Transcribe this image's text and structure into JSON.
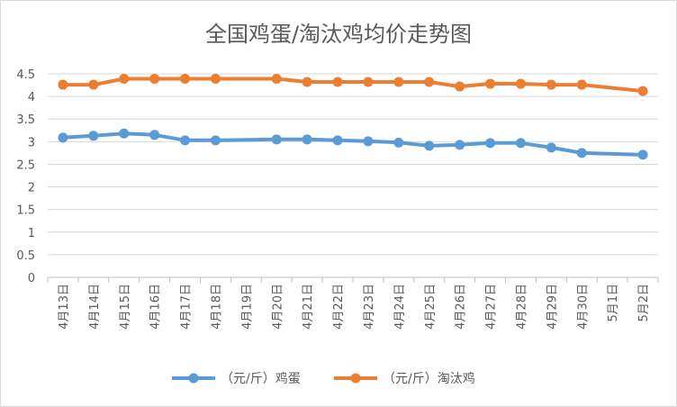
{
  "chart_data": {
    "type": "line",
    "title": "全国鸡蛋/淘汰鸡均价走势图",
    "xlabel": "",
    "ylabel": "",
    "categories": [
      "4月13日",
      "4月14日",
      "4月15日",
      "4月16日",
      "4月17日",
      "4月18日",
      "4月19日",
      "4月20日",
      "4月21日",
      "4月22日",
      "4月23日",
      "4月24日",
      "4月25日",
      "4月26日",
      "4月27日",
      "4月28日",
      "4月29日",
      "4月30日",
      "5月1日",
      "5月2日"
    ],
    "y_ticks": [
      "0",
      "0.5",
      "1",
      "1.5",
      "2",
      "2.5",
      "3",
      "3.5",
      "4",
      "4.5"
    ],
    "ylim": [
      0,
      4.5
    ],
    "grid": true,
    "legend_position": "bottom",
    "series": [
      {
        "name": "（元/斤）鸡蛋",
        "color": "#5b9bd5",
        "values": [
          3.09,
          3.13,
          3.18,
          3.15,
          3.03,
          3.03,
          null,
          3.05,
          3.05,
          3.03,
          3.01,
          2.98,
          2.91,
          2.93,
          2.97,
          2.97,
          2.87,
          2.75,
          null,
          2.71
        ]
      },
      {
        "name": "（元/斤）淘汰鸡",
        "color": "#ed7d31",
        "values": [
          4.26,
          4.26,
          4.39,
          4.39,
          4.39,
          4.39,
          null,
          4.39,
          4.32,
          4.32,
          4.32,
          4.32,
          4.32,
          4.22,
          4.28,
          4.28,
          4.26,
          4.26,
          null,
          4.12
        ]
      }
    ]
  }
}
